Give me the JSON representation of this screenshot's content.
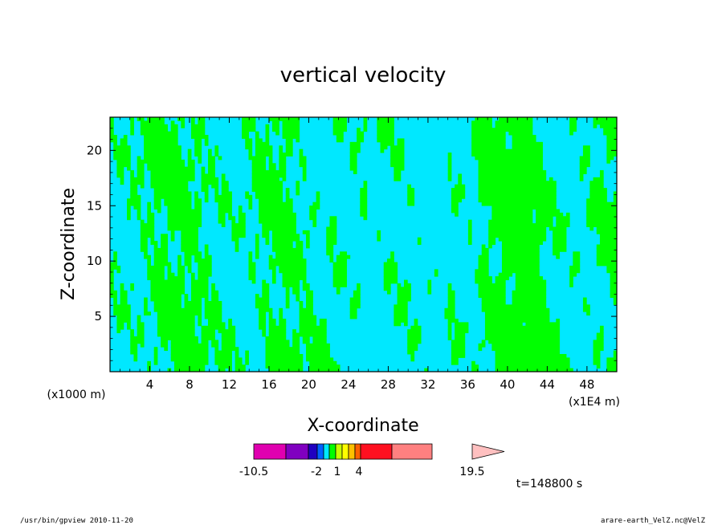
{
  "chart_data": {
    "type": "heatmap",
    "title": "vertical velocity",
    "xlabel": "X-coordinate",
    "ylabel": "Z-coordinate",
    "x_ticks": [
      4,
      8,
      12,
      16,
      20,
      24,
      28,
      32,
      36,
      40,
      44,
      48
    ],
    "y_ticks": [
      5,
      10,
      15,
      20
    ],
    "xlim": [
      0,
      51
    ],
    "ylim": [
      0,
      23
    ],
    "x_unit_left": "(x1000 m)",
    "x_unit_right": "(x1E4 m)",
    "fill_colors": {
      "positive": "#00e8ff",
      "negative": "#00ff00",
      "contour_line": "#000000"
    },
    "colorbar": {
      "colors": [
        "#e000b0",
        "#8000c0",
        "#2000c0",
        "#0060ff",
        "#00e8ff",
        "#00ff00",
        "#c8ff00",
        "#ffff00",
        "#ffc000",
        "#ff6000",
        "#ff1020",
        "#ff8080",
        "#ffc0c0"
      ],
      "labels": [
        "-10.5",
        "-2",
        "1",
        "4",
        "19.5"
      ]
    },
    "time_label": "t=148800 s"
  },
  "footer": {
    "left": "/usr/bin/gpview   2010-11-20",
    "right": "arare-earth_VelZ.nc@VelZ"
  }
}
